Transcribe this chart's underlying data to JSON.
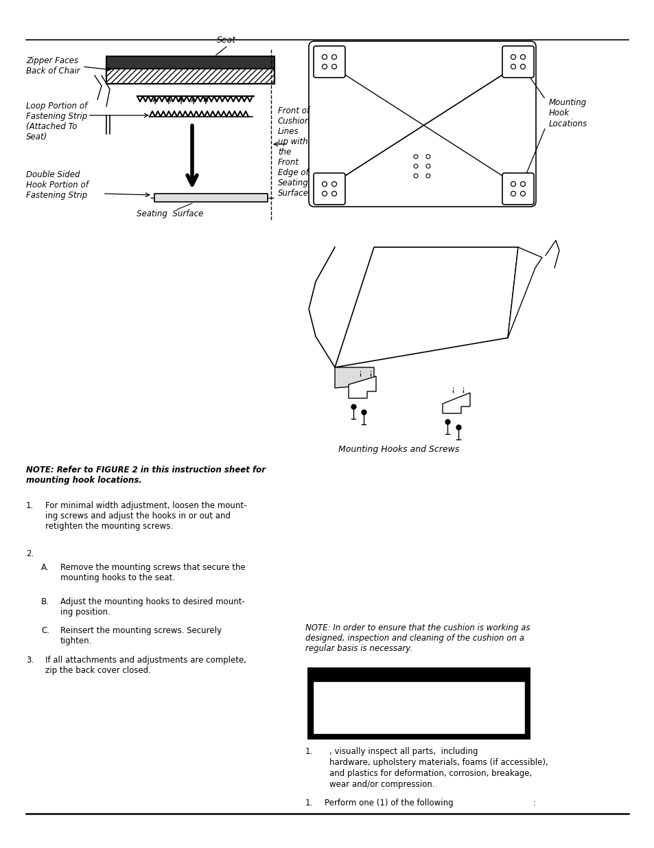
{
  "bg_color": "#ffffff",
  "page_width": 9.54,
  "page_height": 12.35,
  "note_text": "NOTE: Refer to FIGURE 2 in this instruction sheet for\nmounting hook locations.",
  "note2_text": "NOTE: In order to ensure that the cushion is working as\ndesigned, inspection and cleaning of the cushion on a\nregular basis is necessary.",
  "item1": "For minimal width adjustment, loosen the mount-\ning screws and adjust the hooks in or out and\nretighten the mounting screws.",
  "itemA": "Remove the mounting screws that secure the\nmounting hooks to the seat.",
  "itemB": "Adjust the mounting hooks to desired mount-\ning position.",
  "itemC": "Reinsert the mounting screws. Securely\ntighten.",
  "item3": "If all attachments and adjustments are complete,\nzip the back cover closed.",
  "inspect1a": ", visually inspect all parts,  including",
  "inspect1b": "hardware, upholstery materials, foams (if accessible),",
  "inspect1c": "and plastics for deformation, corrosion, breakage,",
  "inspect1d": "wear and/or compression.",
  "perform": "Perform one (1) of the following                               :",
  "label_zipper": "Zipper Faces\nBack of Chair",
  "label_seat": "Seat",
  "label_loop": "Loop Portion of\nFastening Strip\n(Attached To\nSeat)",
  "label_front": "Front of\nCushion\nLines\nup with\nthe\nFront\nEdge of\nSeating\nSurface",
  "label_double": "Double Sided\nHook Portion of\nFastening Strip",
  "label_seating": "Seating  Surface",
  "label_mhl": "Mounting\nHook\nLocations",
  "label_mhs": "Mounting Hooks and Screws"
}
